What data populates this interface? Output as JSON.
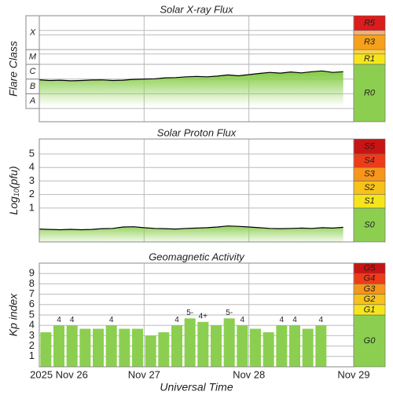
{
  "time_axis": {
    "xlim": [
      0,
      3
    ],
    "xticks": [
      {
        "value": 0,
        "label": "2025 Nov 26"
      },
      {
        "value": 1,
        "label": "Nov 27"
      },
      {
        "value": 2,
        "label": "Nov 28"
      },
      {
        "value": 3,
        "label": "Nov 29"
      }
    ],
    "xlabel": "Universal Time"
  },
  "chart_data": [
    {
      "type": "line",
      "title": "Solar X-ray Flux",
      "ylabel": "Flare Class",
      "ylim": [
        -8.9,
        -1.7
      ],
      "color": "#000000",
      "fill": "#8ccf50",
      "classes": [
        {
          "label": "A",
          "from": -8,
          "to": -7
        },
        {
          "label": "B",
          "from": -7,
          "to": -6
        },
        {
          "label": "C",
          "from": -6,
          "to": -5
        },
        {
          "label": "M",
          "from": -5,
          "to": -4
        },
        {
          "label": "X",
          "from": -4,
          "to": -1.7
        }
      ],
      "scale": [
        {
          "label": "R0",
          "from": -8.9,
          "to": -5,
          "color": "#8ccf50"
        },
        {
          "label": "R1",
          "from": -5,
          "to": -4.3,
          "color": "#f7e51c"
        },
        {
          "from": -4.3,
          "to": -4,
          "color": "#fbd34a"
        },
        {
          "label": "R3",
          "from": -4,
          "to": -3,
          "color": "#f7a11a"
        },
        {
          "from": -3,
          "to": -2.7,
          "color": "#f5b070"
        },
        {
          "label": "R5",
          "from": -2.7,
          "to": -1.7,
          "color": "#dd1c1c"
        }
      ],
      "x": [
        0,
        0.1,
        0.2,
        0.3,
        0.4,
        0.5,
        0.6,
        0.7,
        0.8,
        0.9,
        1,
        1.1,
        1.2,
        1.3,
        1.4,
        1.5,
        1.6,
        1.7,
        1.8,
        1.9,
        2,
        2.1,
        2.2,
        2.3,
        2.4,
        2.5,
        2.6,
        2.7,
        2.8,
        2.9
      ],
      "values": [
        -6.05,
        -6.1,
        -6.08,
        -6.12,
        -6.1,
        -6.07,
        -6.06,
        -6.1,
        -6.08,
        -6.02,
        -6.0,
        -5.98,
        -5.92,
        -5.9,
        -5.85,
        -5.82,
        -5.85,
        -5.8,
        -5.72,
        -5.78,
        -5.7,
        -5.62,
        -5.55,
        -5.6,
        -5.52,
        -5.58,
        -5.5,
        -5.45,
        -5.55,
        -5.5
      ]
    },
    {
      "type": "line",
      "title": "Solar Proton Flux",
      "ylabel": [
        "Log",
        "10",
        "(pfu)"
      ],
      "ylim": [
        -1.5,
        6.1
      ],
      "yticks": [
        1,
        2,
        3,
        4,
        5
      ],
      "color": "#000000",
      "fill": "#8ccf50",
      "scale": [
        {
          "label": "S0",
          "from": -1.5,
          "to": 1,
          "color": "#8ccf50"
        },
        {
          "label": "S1",
          "from": 1,
          "to": 2,
          "color": "#f7e51c"
        },
        {
          "label": "S2",
          "from": 2,
          "to": 3,
          "color": "#f7c21a"
        },
        {
          "label": "S3",
          "from": 3,
          "to": 4,
          "color": "#f7961a"
        },
        {
          "label": "S4",
          "from": 4,
          "to": 5,
          "color": "#ee3b1a"
        },
        {
          "label": "S5",
          "from": 5,
          "to": 6.1,
          "color": "#c81414"
        }
      ],
      "x": [
        0,
        0.1,
        0.2,
        0.3,
        0.4,
        0.5,
        0.6,
        0.7,
        0.8,
        0.9,
        1,
        1.1,
        1.2,
        1.3,
        1.4,
        1.5,
        1.6,
        1.7,
        1.8,
        1.9,
        2,
        2.1,
        2.2,
        2.3,
        2.4,
        2.5,
        2.6,
        2.7,
        2.8,
        2.9
      ],
      "values": [
        -0.55,
        -0.58,
        -0.6,
        -0.57,
        -0.6,
        -0.58,
        -0.52,
        -0.5,
        -0.4,
        -0.38,
        -0.45,
        -0.5,
        -0.52,
        -0.55,
        -0.5,
        -0.48,
        -0.45,
        -0.4,
        -0.32,
        -0.35,
        -0.4,
        -0.45,
        -0.5,
        -0.52,
        -0.5,
        -0.48,
        -0.5,
        -0.45,
        -0.48,
        -0.42
      ]
    },
    {
      "type": "bar",
      "title": "Geomagnetic Activity",
      "ylabel": "Kp index",
      "ylim": [
        0,
        10
      ],
      "yticks": [
        1,
        2,
        3,
        4,
        5,
        6,
        7,
        8,
        9
      ],
      "color": "#8ccf50",
      "scale": [
        {
          "label": "G0",
          "from": 0,
          "to": 5,
          "color": "#8ccf50"
        },
        {
          "label": "G1",
          "from": 5,
          "to": 6,
          "color": "#f7e51c"
        },
        {
          "label": "G2",
          "from": 6,
          "to": 7,
          "color": "#f7c21a"
        },
        {
          "label": "G3",
          "from": 7,
          "to": 8,
          "color": "#f7961a"
        },
        {
          "label": "G4",
          "from": 8,
          "to": 9,
          "color": "#ee3b1a"
        },
        {
          "label": "G5",
          "from": 9,
          "to": 10,
          "color": "#c81414"
        }
      ],
      "x": [
        0.0625,
        0.1875,
        0.3125,
        0.4375,
        0.5625,
        0.6875,
        0.8125,
        0.9375,
        1.0625,
        1.1875,
        1.3125,
        1.4375,
        1.5625,
        1.6875,
        1.8125,
        1.9375,
        2.0625,
        2.1875,
        2.3125,
        2.4375,
        2.5625,
        2.6875
      ],
      "values": [
        3.33,
        4,
        4,
        3.67,
        3.67,
        4,
        3.67,
        3.67,
        3,
        3.33,
        4,
        4.67,
        4.33,
        4,
        4.67,
        4,
        3.67,
        3.33,
        4,
        4,
        3.67,
        4
      ],
      "value_labels": [
        null,
        "4",
        "4",
        null,
        null,
        "4",
        null,
        null,
        null,
        null,
        "4",
        "5-",
        "4+",
        null,
        "5-",
        "4",
        null,
        null,
        "4",
        "4",
        null,
        "4"
      ]
    }
  ]
}
